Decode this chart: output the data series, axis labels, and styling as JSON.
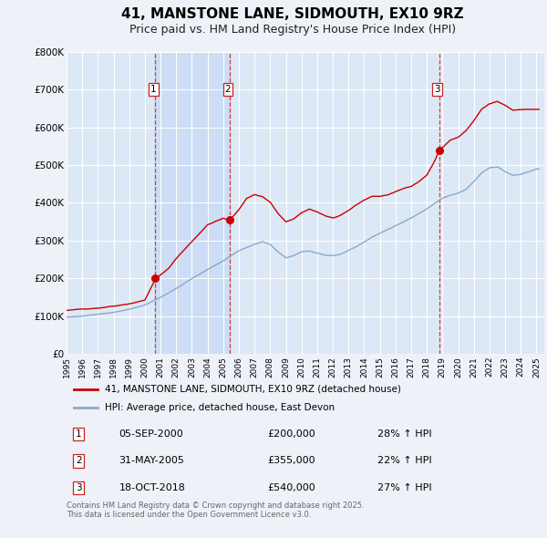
{
  "title": "41, MANSTONE LANE, SIDMOUTH, EX10 9RZ",
  "subtitle": "Price paid vs. HM Land Registry's House Price Index (HPI)",
  "title_fontsize": 11,
  "subtitle_fontsize": 9,
  "background_color": "#eef2f8",
  "plot_bg_color": "#dce8f5",
  "grid_color": "#ffffff",
  "ylim": [
    0,
    800000
  ],
  "yticks": [
    0,
    100000,
    200000,
    300000,
    400000,
    500000,
    600000,
    700000,
    800000
  ],
  "ytick_labels": [
    "£0",
    "£100K",
    "£200K",
    "£300K",
    "£400K",
    "£500K",
    "£600K",
    "£700K",
    "£800K"
  ],
  "xlim_start": 1995.0,
  "xlim_end": 2025.5,
  "xticks": [
    1995,
    1996,
    1997,
    1998,
    1999,
    2000,
    2001,
    2002,
    2003,
    2004,
    2005,
    2006,
    2007,
    2008,
    2009,
    2010,
    2011,
    2012,
    2013,
    2014,
    2015,
    2016,
    2017,
    2018,
    2019,
    2020,
    2021,
    2022,
    2023,
    2024,
    2025
  ],
  "red_line_color": "#cc0000",
  "blue_line_color": "#88aacc",
  "vline_color": "#cc2222",
  "shade_color": "#ccddf5",
  "legend_line1": "41, MANSTONE LANE, SIDMOUTH, EX10 9RZ (detached house)",
  "legend_line2": "HPI: Average price, detached house, East Devon",
  "transactions": [
    {
      "num": 1,
      "date": "05-SEP-2000",
      "price": 200000,
      "pct": "28%",
      "year": 2000.67
    },
    {
      "num": 2,
      "date": "31-MAY-2005",
      "price": 355000,
      "pct": "22%",
      "year": 2005.41
    },
    {
      "num": 3,
      "date": "18-OCT-2018",
      "price": 540000,
      "pct": "27%",
      "year": 2018.79
    }
  ],
  "footer_text": "Contains HM Land Registry data © Crown copyright and database right 2025.\nThis data is licensed under the Open Government Licence v3.0."
}
